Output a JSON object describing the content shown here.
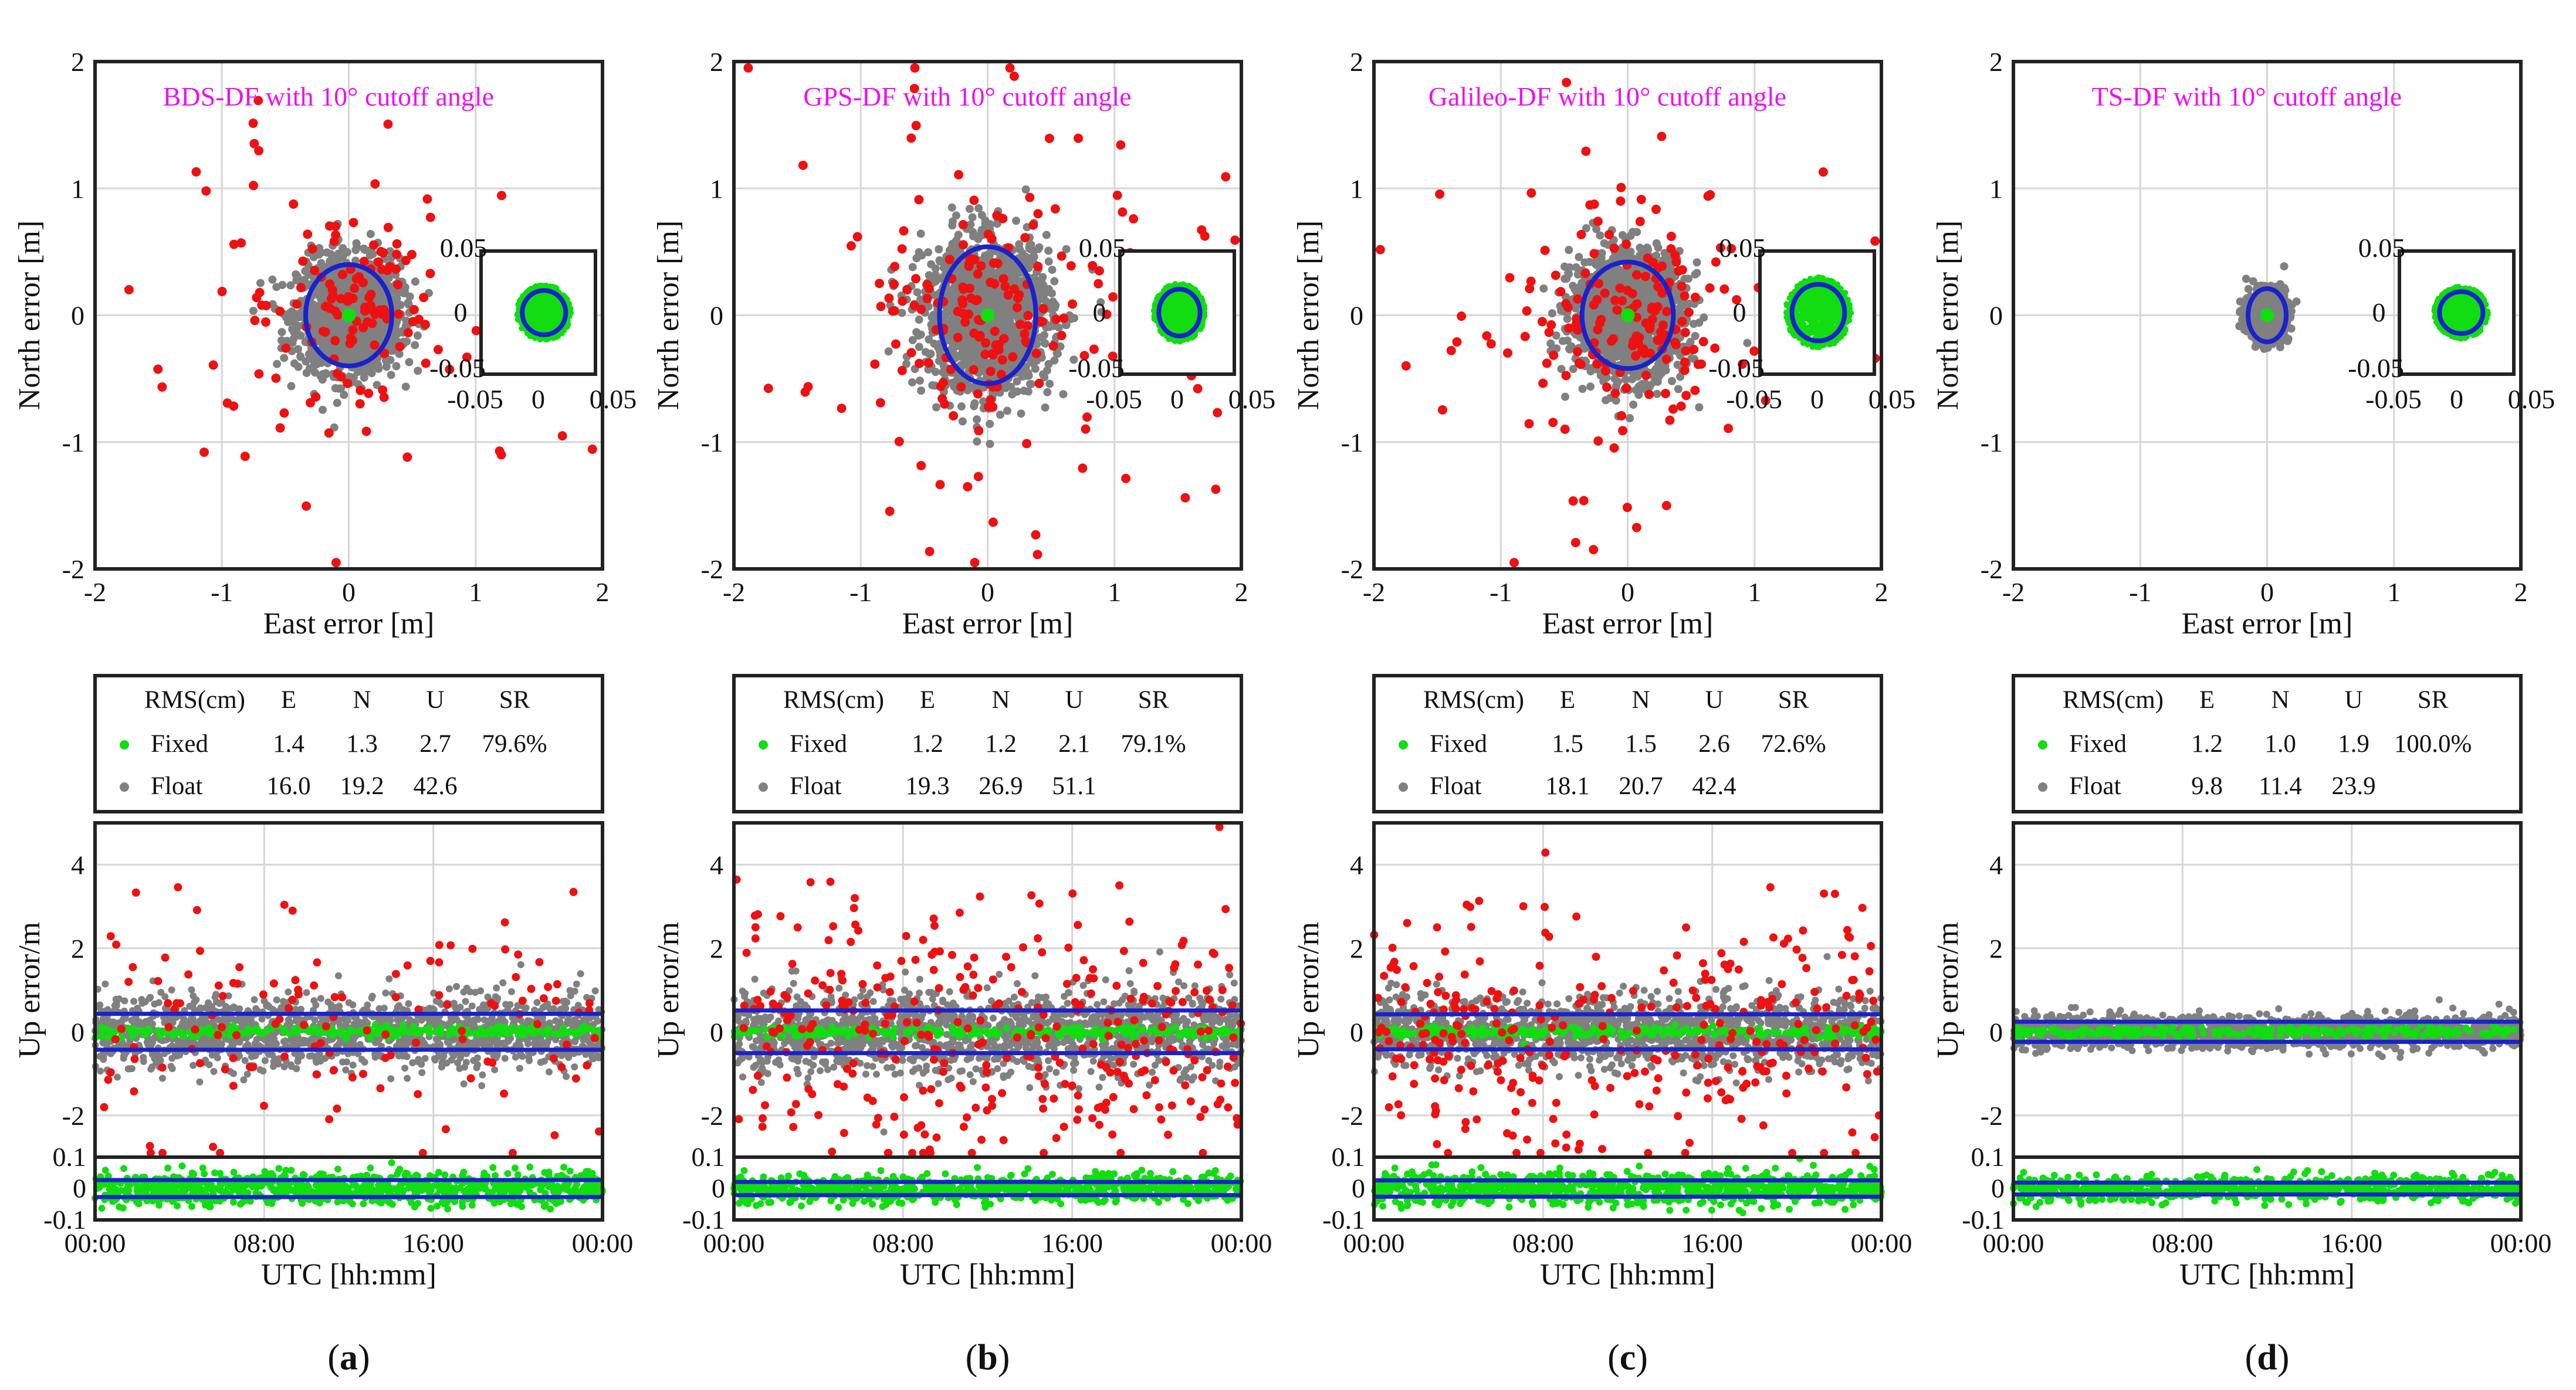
{
  "figure": {
    "panels": [
      {
        "id": "a",
        "label": "a",
        "title": "BDS-DF with 10° cutoff angle",
        "stats": {
          "header": [
            "RMS(cm)",
            "E",
            "N",
            "U",
            "SR"
          ],
          "fixed": [
            "Fixed",
            "1.4",
            "1.3",
            "2.7",
            "79.6%"
          ],
          "float": [
            "Float",
            "16.0",
            "19.2",
            "42.6",
            ""
          ]
        }
      },
      {
        "id": "b",
        "label": "b",
        "title": "GPS-DF with 10° cutoff angle",
        "stats": {
          "header": [
            "RMS(cm)",
            "E",
            "N",
            "U",
            "SR"
          ],
          "fixed": [
            "Fixed",
            "1.2",
            "1.2",
            "2.1",
            "79.1%"
          ],
          "float": [
            "Float",
            "19.3",
            "26.9",
            "51.1",
            ""
          ]
        }
      },
      {
        "id": "c",
        "label": "c",
        "title": "Galileo-DF with 10° cutoff angle",
        "stats": {
          "header": [
            "RMS(cm)",
            "E",
            "N",
            "U",
            "SR"
          ],
          "fixed": [
            "Fixed",
            "1.5",
            "1.5",
            "2.6",
            "72.6%"
          ],
          "float": [
            "Float",
            "18.1",
            "20.7",
            "42.4",
            ""
          ]
        }
      },
      {
        "id": "d",
        "label": "d",
        "title": "TS-DF with 10° cutoff angle",
        "stats": {
          "header": [
            "RMS(cm)",
            "E",
            "N",
            "U",
            "SR"
          ],
          "fixed": [
            "Fixed",
            "1.2",
            "1.0",
            "1.9",
            "100.0%"
          ],
          "float": [
            "Float",
            "9.8",
            "11.4",
            "23.9",
            ""
          ]
        }
      }
    ]
  },
  "chart_data": [
    {
      "type": "scatter",
      "panel": "a",
      "title": "BDS-DF with 10° cutoff angle",
      "xlabel": "East error [m]",
      "ylabel": "North error [m]",
      "xlim": [
        -2,
        2
      ],
      "ylim": [
        -2,
        2
      ],
      "xticks": [
        "-2",
        "-1",
        "0",
        "1",
        "2"
      ],
      "yticks": [
        "-2",
        "-1",
        "0",
        "1",
        "2"
      ],
      "series": [
        {
          "name": "Float",
          "color": "#808080",
          "sigma_e": 0.2,
          "sigma_n": 0.22
        },
        {
          "name": "Float outliers",
          "color": "#ee1111",
          "count": 150
        },
        {
          "name": "Fixed",
          "color": "#11dd11"
        }
      ],
      "ellipse": {
        "center": [
          0.0,
          0.0
        ],
        "semi_e": 0.34,
        "semi_n": 0.4
      },
      "inset": {
        "xlim": [
          -0.05,
          0.05
        ],
        "ylim": [
          -0.05,
          0.05
        ],
        "ticks": [
          "-0.05",
          "0",
          "0.05"
        ],
        "ellipse_semi_e": 0.019,
        "ellipse_semi_n": 0.018,
        "ellipse_center": [
          0.005,
          0.0
        ]
      }
    },
    {
      "type": "scatter",
      "panel": "b",
      "title": "GPS-DF with 10° cutoff angle",
      "xlabel": "East error [m]",
      "ylabel": "North error [m]",
      "xlim": [
        -2,
        2
      ],
      "ylim": [
        -2,
        2
      ],
      "xticks": [
        "-2",
        "-1",
        "0",
        "1",
        "2"
      ],
      "yticks": [
        "-2",
        "-1",
        "0",
        "1",
        "2"
      ],
      "series": [
        {
          "name": "Float",
          "color": "#808080",
          "sigma_e": 0.25,
          "sigma_n": 0.3
        },
        {
          "name": "Float outliers",
          "color": "#ee1111",
          "count": 190
        },
        {
          "name": "Fixed",
          "color": "#11dd11"
        }
      ],
      "ellipse": {
        "center": [
          0.0,
          0.0
        ],
        "semi_e": 0.38,
        "semi_n": 0.54
      },
      "inset": {
        "xlim": [
          -0.05,
          0.05
        ],
        "ylim": [
          -0.05,
          0.05
        ],
        "ticks": [
          "-0.05",
          "0",
          "0.05"
        ],
        "ellipse_semi_e": 0.018,
        "ellipse_semi_n": 0.019,
        "ellipse_center": [
          0.002,
          0.0
        ]
      }
    },
    {
      "type": "scatter",
      "panel": "c",
      "title": "Galileo-DF with 10° cutoff angle",
      "xlabel": "East error [m]",
      "ylabel": "North error [m]",
      "xlim": [
        -2,
        2
      ],
      "ylim": [
        -2,
        2
      ],
      "xticks": [
        "-2",
        "-1",
        "0",
        "1",
        "2"
      ],
      "yticks": [
        "-2",
        "-1",
        "0",
        "1",
        "2"
      ],
      "series": [
        {
          "name": "Float",
          "color": "#808080",
          "sigma_e": 0.22,
          "sigma_n": 0.24
        },
        {
          "name": "Float outliers",
          "color": "#ee1111",
          "count": 190
        },
        {
          "name": "Fixed",
          "color": "#11dd11"
        }
      ],
      "ellipse": {
        "center": [
          0.0,
          0.0
        ],
        "semi_e": 0.36,
        "semi_n": 0.42
      },
      "inset": {
        "xlim": [
          -0.05,
          0.05
        ],
        "ylim": [
          -0.05,
          0.05
        ],
        "ticks": [
          "-0.05",
          "0",
          "0.05"
        ],
        "ellipse_semi_e": 0.023,
        "ellipse_semi_n": 0.023,
        "ellipse_center": [
          0.001,
          0.0
        ]
      }
    },
    {
      "type": "scatter",
      "panel": "d",
      "title": "TS-DF with 10° cutoff angle",
      "xlabel": "East error [m]",
      "ylabel": "North error [m]",
      "xlim": [
        -2,
        2
      ],
      "ylim": [
        -2,
        2
      ],
      "xticks": [
        "-2",
        "-1",
        "0",
        "1",
        "2"
      ],
      "yticks": [
        "-2",
        "-1",
        "0",
        "1",
        "2"
      ],
      "series": [
        {
          "name": "Float",
          "color": "#808080",
          "sigma_e": 0.07,
          "sigma_n": 0.09
        },
        {
          "name": "Float outliers",
          "color": "#ee1111",
          "count": 0
        },
        {
          "name": "Fixed",
          "color": "#11dd11"
        }
      ],
      "ellipse": {
        "center": [
          0.0,
          0.0
        ],
        "semi_e": 0.15,
        "semi_n": 0.21
      },
      "inset": {
        "xlim": [
          -0.05,
          0.05
        ],
        "ylim": [
          -0.05,
          0.05
        ],
        "ticks": [
          "-0.05",
          "0",
          "0.05"
        ],
        "ellipse_semi_e": 0.019,
        "ellipse_semi_n": 0.017,
        "ellipse_center": [
          0.004,
          0.0
        ]
      }
    },
    {
      "type": "scatter",
      "panel": "a",
      "ylabel": "Up error/m",
      "xlabel": "UTC [hh:mm]",
      "ylim": [
        -3,
        5
      ],
      "yticks": [
        "4",
        "2",
        "0",
        "-2"
      ],
      "ytick_values": [
        4,
        2,
        0,
        -2
      ],
      "xticks": [
        "00:00",
        "08:00",
        "16:00",
        "00:00"
      ],
      "float_sigma": 0.42,
      "outlier_count": 130,
      "rms_band": [
        -0.43,
        0.43
      ],
      "fixed_ylim": [
        -0.1,
        0.1
      ],
      "fixed_yticks": [
        "0.1",
        "0",
        "-0.1"
      ],
      "fixed_sigma": 0.027,
      "fixed_band": [
        -0.027,
        0.027
      ]
    },
    {
      "type": "scatter",
      "panel": "b",
      "ylabel": "Up error/m",
      "xlabel": "UTC [hh:mm]",
      "ylim": [
        -3,
        5
      ],
      "yticks": [
        "4",
        "2",
        "0",
        "-2"
      ],
      "ytick_values": [
        4,
        2,
        0,
        -2
      ],
      "xticks": [
        "00:00",
        "08:00",
        "16:00",
        "00:00"
      ],
      "float_sigma": 0.5,
      "outlier_count": 330,
      "rms_band": [
        -0.51,
        0.51
      ],
      "fixed_ylim": [
        -0.1,
        0.1
      ],
      "fixed_yticks": [
        "0.1",
        "0",
        "-0.1"
      ],
      "fixed_sigma": 0.021,
      "fixed_band": [
        -0.021,
        0.021
      ]
    },
    {
      "type": "scatter",
      "panel": "c",
      "ylabel": "Up error/m",
      "xlabel": "UTC [hh:mm]",
      "ylim": [
        -3,
        5
      ],
      "yticks": [
        "4",
        "2",
        "0",
        "-2"
      ],
      "ytick_values": [
        4,
        2,
        0,
        -2
      ],
      "xticks": [
        "00:00",
        "08:00",
        "16:00",
        "00:00"
      ],
      "float_sigma": 0.42,
      "outlier_count": 300,
      "rms_band": [
        -0.42,
        0.42
      ],
      "fixed_ylim": [
        -0.1,
        0.1
      ],
      "fixed_yticks": [
        "0.1",
        "0",
        "-0.1"
      ],
      "fixed_sigma": 0.026,
      "fixed_band": [
        -0.026,
        0.026
      ]
    },
    {
      "type": "scatter",
      "panel": "d",
      "ylabel": "Up error/m",
      "xlabel": "UTC [hh:mm]",
      "ylim": [
        -3,
        5
      ],
      "yticks": [
        "4",
        "2",
        "0",
        "-2"
      ],
      "ytick_values": [
        4,
        2,
        0,
        -2
      ],
      "xticks": [
        "00:00",
        "08:00",
        "16:00",
        "00:00"
      ],
      "float_sigma": 0.2,
      "outlier_count": 0,
      "rms_band": [
        -0.24,
        0.24
      ],
      "fixed_ylim": [
        -0.1,
        0.1
      ],
      "fixed_yticks": [
        "0.1",
        "0",
        "-0.1"
      ],
      "fixed_sigma": 0.019,
      "fixed_band": [
        -0.019,
        0.019
      ]
    }
  ],
  "colors": {
    "fixed": "#11dd11",
    "float": "#808080",
    "outlier": "#ee1111",
    "ellipse": "#1a22cc",
    "title": "#ee11ee"
  }
}
